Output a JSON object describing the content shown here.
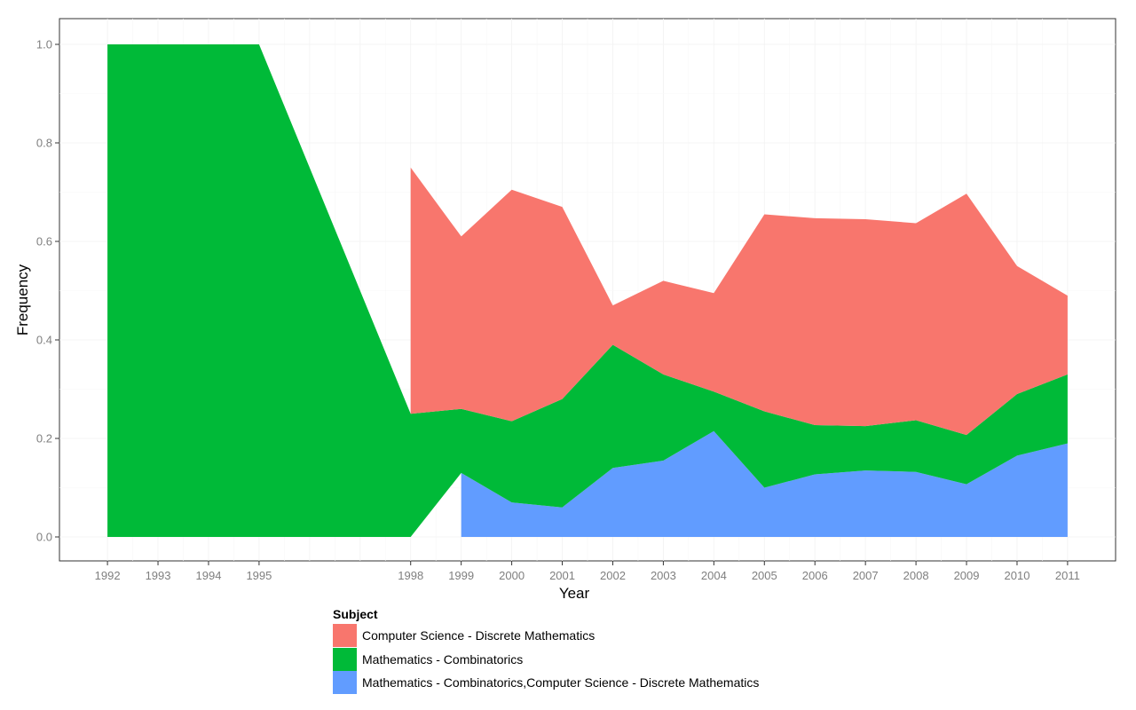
{
  "chart_data": {
    "type": "area",
    "xlabel": "Year",
    "ylabel": "Frequency",
    "ylim": [
      0,
      1
    ],
    "yticks": [
      "0.0",
      "0.2",
      "0.4",
      "0.6",
      "0.8",
      "1.0"
    ],
    "xticks": [
      "1992",
      "1993",
      "1994",
      "1995",
      "1998",
      "1999",
      "2000",
      "2001",
      "2002",
      "2003",
      "2004",
      "2005",
      "2006",
      "2007",
      "2008",
      "2009",
      "2010",
      "2011"
    ],
    "grid": true,
    "legend_position": "bottom",
    "legend_title": "Subject",
    "series": [
      {
        "name": "Computer Science - Discrete Mathematics",
        "color": "#F8766D",
        "x": [
          1998,
          1999,
          2000,
          2001,
          2002,
          2003,
          2004,
          2005,
          2006,
          2007,
          2008,
          2009,
          2010,
          2011
        ],
        "values": [
          0.5,
          0.35,
          0.47,
          0.39,
          0.08,
          0.19,
          0.2,
          0.4,
          0.42,
          0.42,
          0.4,
          0.49,
          0.26,
          0.16
        ]
      },
      {
        "name": "Mathematics - Combinatorics",
        "color": "#00BA38",
        "x": [
          1992,
          1993,
          1994,
          1995,
          1998,
          1999,
          2000,
          2001,
          2002,
          2003,
          2004,
          2005,
          2006,
          2007,
          2008,
          2009,
          2010,
          2011
        ],
        "values": [
          1.0,
          1.0,
          1.0,
          1.0,
          0.25,
          0.13,
          0.165,
          0.22,
          0.25,
          0.175,
          0.08,
          0.155,
          0.1,
          0.09,
          0.105,
          0.1,
          0.125,
          0.14
        ]
      },
      {
        "name": "Mathematics - Combinatorics,Computer Science - Discrete Mathematics",
        "color": "#619CFF",
        "x": [
          1999,
          2000,
          2001,
          2002,
          2003,
          2004,
          2005,
          2006,
          2007,
          2008,
          2009,
          2010,
          2011
        ],
        "values": [
          0.13,
          0.07,
          0.06,
          0.14,
          0.155,
          0.215,
          0.1,
          0.127,
          0.135,
          0.132,
          0.107,
          0.165,
          0.19
        ]
      }
    ]
  }
}
